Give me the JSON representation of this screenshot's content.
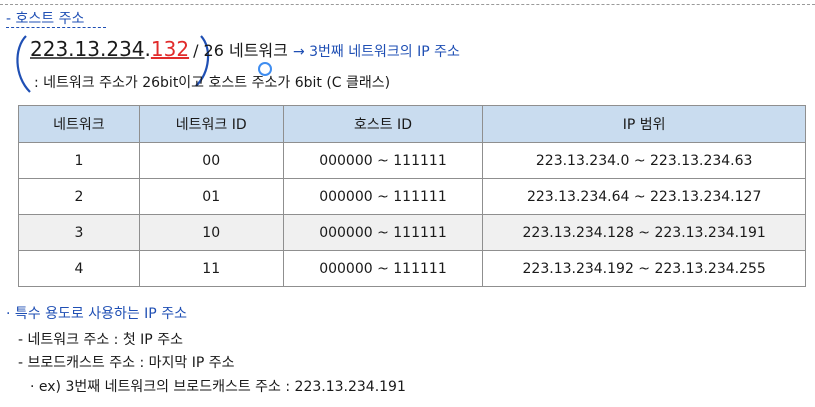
{
  "section_title": "- 호스트 주소",
  "ip_example": {
    "network_part": "223.13.234",
    "dot": ".",
    "host_part": "132",
    "suffix": "/ 26 네트워크",
    "arrow_note": "→ 3번째 네트워크의 IP 주소"
  },
  "sub_note": ": 네트워크 주소가 26bit이고 호스트 주소가 6bit (C 클래스)",
  "table": {
    "headers": [
      "네트워크",
      "네트워크 ID",
      "호스트 ID",
      "IP 범위"
    ],
    "rows": [
      [
        "1",
        "00",
        "000000 ~ 111111",
        "223.13.234.0 ~ 223.13.234.63"
      ],
      [
        "2",
        "01",
        "000000 ~ 111111",
        "223.13.234.64 ~ 223.13.234.127"
      ],
      [
        "3",
        "10",
        "000000 ~ 111111",
        "223.13.234.128 ~ 223.13.234.191"
      ],
      [
        "4",
        "11",
        "000000 ~ 111111",
        "223.13.234.192 ~ 223.13.234.255"
      ]
    ]
  },
  "special": {
    "title": "· 특수 용도로 사용하는 IP 주소",
    "items": [
      "- 네트워크 주소 : 첫 IP 주소",
      "- 브로드캐스트 주소 : 마지막 IP 주소",
      "· ex) 3번째 네트워크의 브로드캐스트 주소 : 223.13.234.191"
    ]
  },
  "colors": {
    "accent_blue": "#1f4fb4",
    "host_red": "#e12b2b",
    "header_bg": "#c9dcef"
  }
}
